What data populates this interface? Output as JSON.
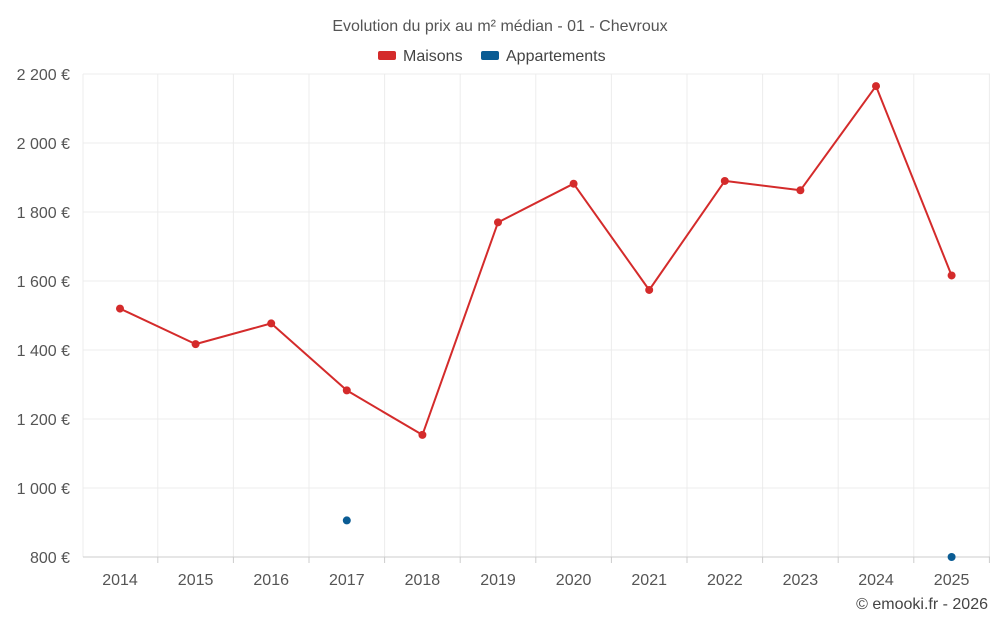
{
  "chart_data": {
    "type": "line",
    "title": "Evolution du prix au m² médian - 01 - Chevroux",
    "categories": [
      "2014",
      "2015",
      "2016",
      "2017",
      "2018",
      "2019",
      "2020",
      "2021",
      "2022",
      "2023",
      "2024",
      "2025"
    ],
    "series": [
      {
        "name": "Maisons",
        "color": "#d42b2b",
        "values": [
          1520,
          1417,
          1477,
          1283,
          1154,
          1770,
          1882,
          1574,
          1890,
          1863,
          2165,
          1616
        ]
      },
      {
        "name": "Appartements",
        "color": "#0a5c94",
        "values": [
          null,
          null,
          null,
          906,
          null,
          null,
          null,
          null,
          null,
          null,
          null,
          800
        ]
      }
    ],
    "ylim": [
      800,
      2200
    ],
    "y_ticks": [
      800,
      1000,
      1200,
      1400,
      1600,
      1800,
      2000,
      2200
    ],
    "y_tick_labels": [
      "800 €",
      "1 000 €",
      "1 200 €",
      "1 400 €",
      "1 600 €",
      "1 800 €",
      "2 000 €",
      "2 200 €"
    ],
    "grid": true,
    "legend": "top-center",
    "credit": "© emooki.fr - 2026"
  }
}
